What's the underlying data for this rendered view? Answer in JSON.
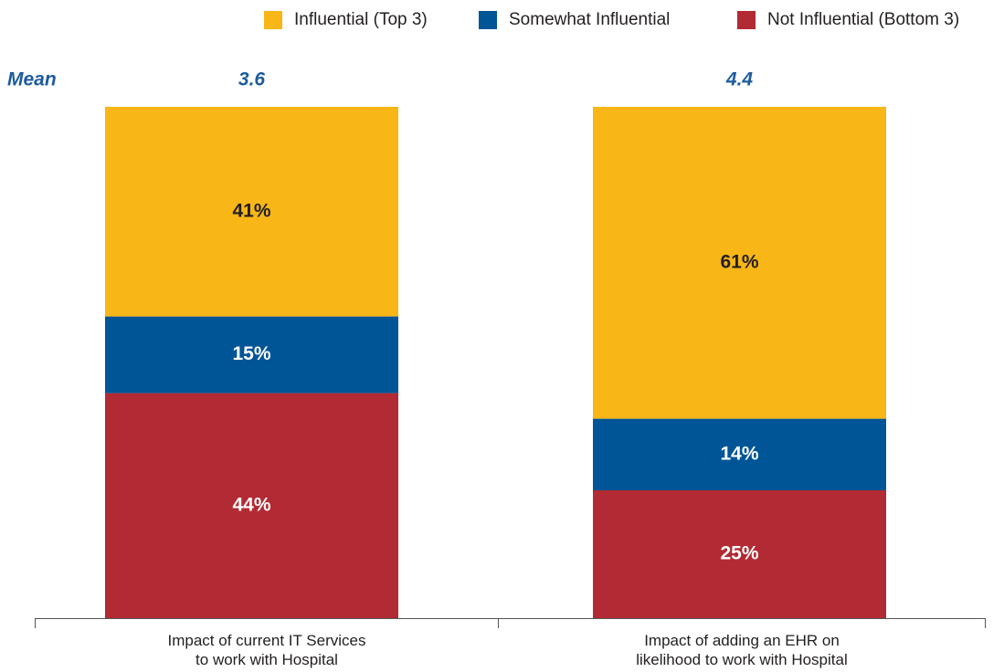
{
  "chart_data": {
    "type": "stacked_bar",
    "categories": [
      "Impact of current IT Services\nto work with Hospital",
      "Impact of adding an EHR on\nlikelihood to work with Hospital"
    ],
    "series": [
      {
        "name": "Influential (Top 3)",
        "color": "#f9b617",
        "label_color": "#231f20",
        "values": [
          41,
          61
        ],
        "value_labels": [
          "41%",
          "61%"
        ]
      },
      {
        "name": "Somewhat Influential",
        "color": "#005596",
        "label_color": "#ffffff",
        "values": [
          15,
          14
        ],
        "value_labels": [
          "15%",
          "14%"
        ]
      },
      {
        "name": "Not Influential (Bottom 3)",
        "color": "#b22a33",
        "label_color": "#ffffff",
        "values": [
          44,
          25
        ],
        "value_labels": [
          "44%",
          "25%"
        ]
      }
    ],
    "mean_label": "Mean",
    "means": [
      3.6,
      4.4
    ],
    "ylim": [
      0,
      100
    ],
    "legend": "top-right"
  }
}
